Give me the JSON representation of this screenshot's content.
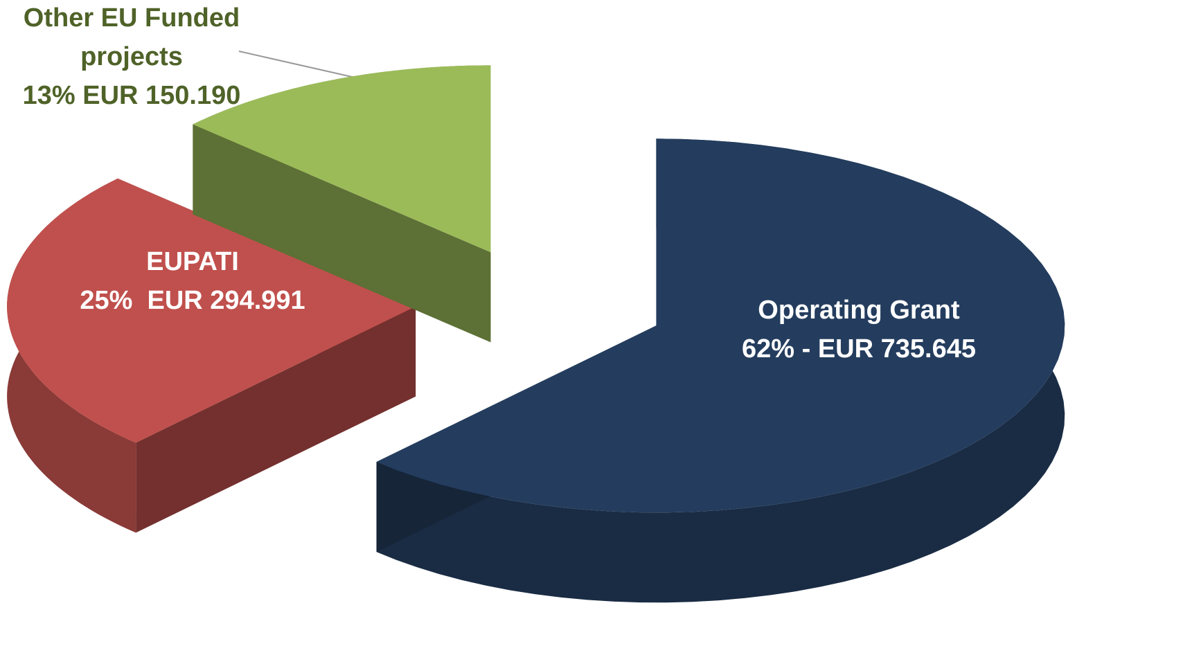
{
  "chart_data": {
    "type": "pie",
    "categories": [
      "Operating Grant",
      "EUPATI",
      "Other EU Funded projects"
    ],
    "values": [
      62,
      25,
      13
    ],
    "value_labels": [
      "62% - EUR 735.645",
      "25%  EUR 294.991",
      "13% EUR 150.190"
    ],
    "colors": [
      "#243d5e",
      "#c0504d",
      "#9bbb59"
    ],
    "label_colors": [
      "#ffffff",
      "#ffffff",
      "#4f6228"
    ]
  }
}
